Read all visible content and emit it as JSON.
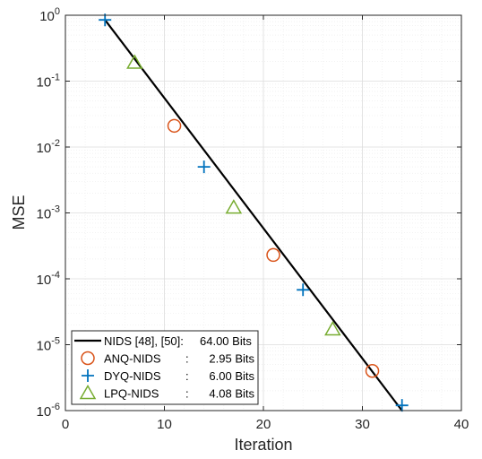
{
  "chart_data": {
    "type": "line",
    "title": "",
    "xlabel": "Iteration",
    "ylabel": "MSE",
    "xlim": [
      0,
      40
    ],
    "ylim": [
      1e-06,
      1
    ],
    "yscale": "log",
    "grid": true,
    "box": true,
    "legend_position": "bottom-left",
    "x_ticks": [
      0,
      10,
      20,
      30,
      40
    ],
    "x_tick_labels": [
      "0",
      "10",
      "20",
      "30",
      "40"
    ],
    "y_ticks": [
      1,
      0.1,
      0.01,
      0.001,
      0.0001,
      1e-05,
      1e-06
    ],
    "y_tick_labels": [
      {
        "base": "10",
        "exp": "0"
      },
      {
        "base": "10",
        "exp": "-1"
      },
      {
        "base": "10",
        "exp": "-2"
      },
      {
        "base": "10",
        "exp": "-3"
      },
      {
        "base": "10",
        "exp": "-4"
      },
      {
        "base": "10",
        "exp": "-5"
      },
      {
        "base": "10",
        "exp": "-6"
      }
    ],
    "series": [
      {
        "name": "NIDS [48], [50]: 64.00 Bits",
        "legend_name": "NIDS [48], [50]:",
        "legend_value": "64.00 Bits",
        "marker": "line",
        "color": "#000000",
        "x": [
          4,
          34
        ],
        "y": [
          0.85,
          1e-06
        ]
      },
      {
        "name": "ANQ-NIDS : 2.95 Bits",
        "legend_name": "ANQ-NIDS",
        "legend_value": "2.95 Bits",
        "marker": "circle",
        "color": "#D95319",
        "x": [
          11,
          21,
          31
        ],
        "y": [
          0.021,
          0.00023,
          4e-06
        ]
      },
      {
        "name": "DYQ-NIDS : 6.00 Bits",
        "legend_name": "DYQ-NIDS",
        "legend_value": "6.00 Bits",
        "marker": "plus",
        "color": "#0072BD",
        "x": [
          4,
          14,
          24,
          34
        ],
        "y": [
          0.85,
          0.005,
          6.8e-05,
          1.2e-06
        ]
      },
      {
        "name": "LPQ-NIDS : 4.08 Bits",
        "legend_name": "LPQ-NIDS",
        "legend_value": "4.08 Bits",
        "marker": "triangle",
        "color": "#77AC30",
        "x": [
          7,
          17,
          27
        ],
        "y": [
          0.19,
          0.0012,
          1.7e-05
        ]
      }
    ]
  }
}
